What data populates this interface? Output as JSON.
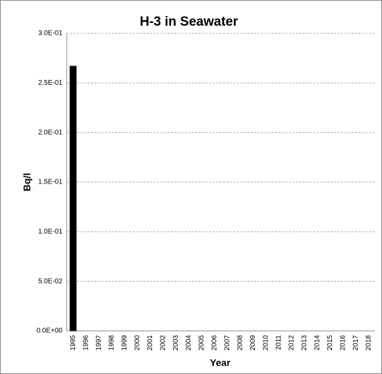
{
  "chart_data": {
    "type": "bar",
    "title": "H-3 in Seawater",
    "x_label": "Year",
    "y_label": "Bq/l",
    "categories": [
      "1995",
      "1996",
      "1997",
      "1998",
      "1999",
      "2000",
      "2001",
      "2002",
      "2003",
      "2004",
      "2005",
      "2006",
      "2007",
      "2008",
      "2009",
      "2010",
      "2011",
      "2012",
      "2013",
      "2014",
      "2015",
      "2016",
      "2017",
      "2018"
    ],
    "values": [
      0.267,
      null,
      null,
      null,
      null,
      null,
      null,
      null,
      null,
      null,
      null,
      null,
      null,
      null,
      null,
      null,
      null,
      null,
      null,
      null,
      null,
      null,
      null,
      null
    ],
    "color": "#000000",
    "ylim": [
      0,
      0.3
    ],
    "yticks": [
      {
        "value": 0,
        "label": "0.0E+00"
      },
      {
        "value": 0.05,
        "label": "5.0E-02"
      },
      {
        "value": 0.1,
        "label": "1.0E-01"
      },
      {
        "value": 0.15,
        "label": "1.5E-01"
      },
      {
        "value": 0.2,
        "label": "2.0E-01"
      },
      {
        "value": 0.25,
        "label": "2.5E-01"
      },
      {
        "value": 0.3,
        "label": "3.0E-01"
      }
    ],
    "grid": true
  }
}
